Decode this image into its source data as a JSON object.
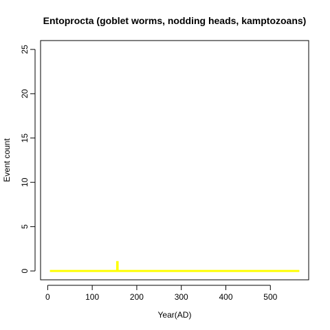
{
  "chart_data": {
    "type": "line",
    "title": "Entoprocta (goblet worms, nodding heads, kamptozoans)",
    "xlabel": "Year(AD)",
    "ylabel": "Event count",
    "xlim": [
      -16,
      586
    ],
    "ylim": [
      -1,
      26
    ],
    "xticks": [
      0,
      100,
      200,
      300,
      400,
      500
    ],
    "yticks": [
      0,
      5,
      10,
      15,
      20,
      25
    ],
    "grid": false,
    "legend": "none",
    "series": [
      {
        "color": "#ffff00",
        "x": [
          5,
          156,
          156,
          157,
          157,
          565
        ],
        "y": [
          0,
          0,
          1,
          1,
          0,
          0
        ]
      }
    ]
  }
}
